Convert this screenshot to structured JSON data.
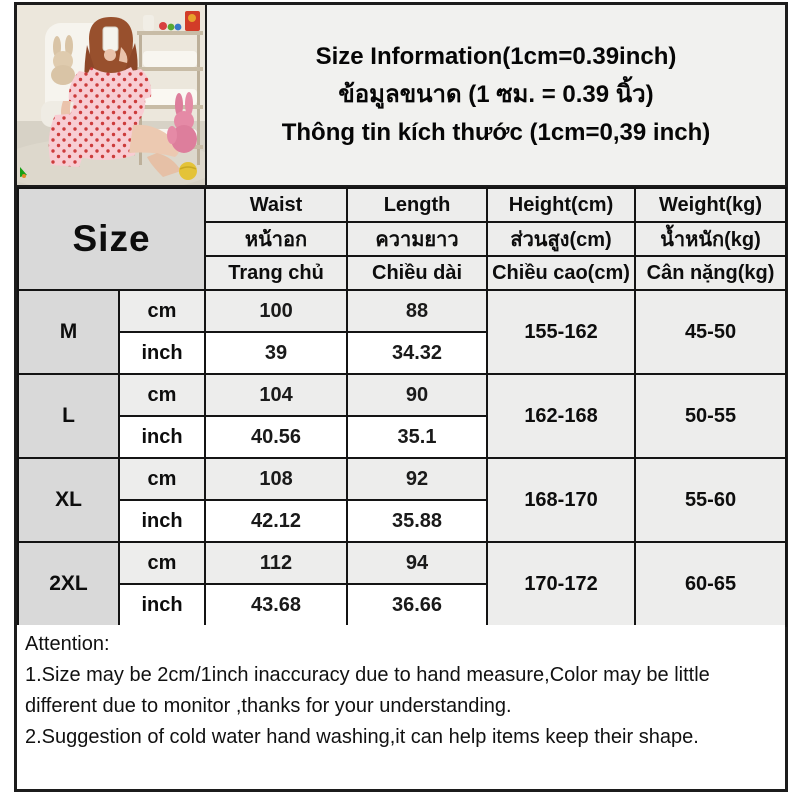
{
  "title_panel": {
    "line_en": "Size Information(1cm=0.39inch)",
    "line_th": "ข้อมูลขนาด (1 ซม. = 0.39 นิ้ว)",
    "line_vi": "Thông tin kích thước (1cm=0,39 inch)"
  },
  "size_table": {
    "size_label": "Size",
    "columns": {
      "en": [
        "Waist",
        "Length",
        "Height(cm)",
        "Weight(kg)"
      ],
      "th": [
        "หน้าอก",
        "ความยาว",
        "ส่วนสูง(cm)",
        "น้ำหนัก(kg)"
      ],
      "vi": [
        "Trang chủ",
        "Chiều dài",
        "Chiều cao(cm)",
        "Cân nặng(kg)"
      ]
    },
    "unit_labels": [
      "cm",
      "inch"
    ],
    "rows": [
      {
        "size": "M",
        "cm": {
          "waist": "100",
          "length": "88"
        },
        "inch": {
          "waist": "39",
          "length": "34.32"
        },
        "height": "155-162",
        "weight": "45-50"
      },
      {
        "size": "L",
        "cm": {
          "waist": "104",
          "length": "90"
        },
        "inch": {
          "waist": "40.56",
          "length": "35.1"
        },
        "height": "162-168",
        "weight": "50-55"
      },
      {
        "size": "XL",
        "cm": {
          "waist": "108",
          "length": "92"
        },
        "inch": {
          "waist": "42.12",
          "length": "35.88"
        },
        "height": "168-170",
        "weight": "55-60"
      },
      {
        "size": "2XL",
        "cm": {
          "waist": "112",
          "length": "94"
        },
        "inch": {
          "waist": "43.68",
          "length": "36.66"
        },
        "height": "170-172",
        "weight": "60-65"
      }
    ]
  },
  "attention": {
    "title": "Attention:",
    "line1": "1.Size may be 2cm/1inch inaccuracy due to hand measure,Color may be little different due to monitor ,thanks for your understanding.",
    "line2": "2.Suggestion of cold water hand washing,it can help items keep their shape."
  },
  "colors": {
    "fold_marker_green": "#17a017",
    "size_cell_gray": "#d9d9d9",
    "header_cell_gray": "#ededec",
    "panel_gray": "#f1f1ef",
    "border_black": "#1c1c1c",
    "dress_pink": "#f8cdd3",
    "dot_red": "#cc3b3b"
  }
}
